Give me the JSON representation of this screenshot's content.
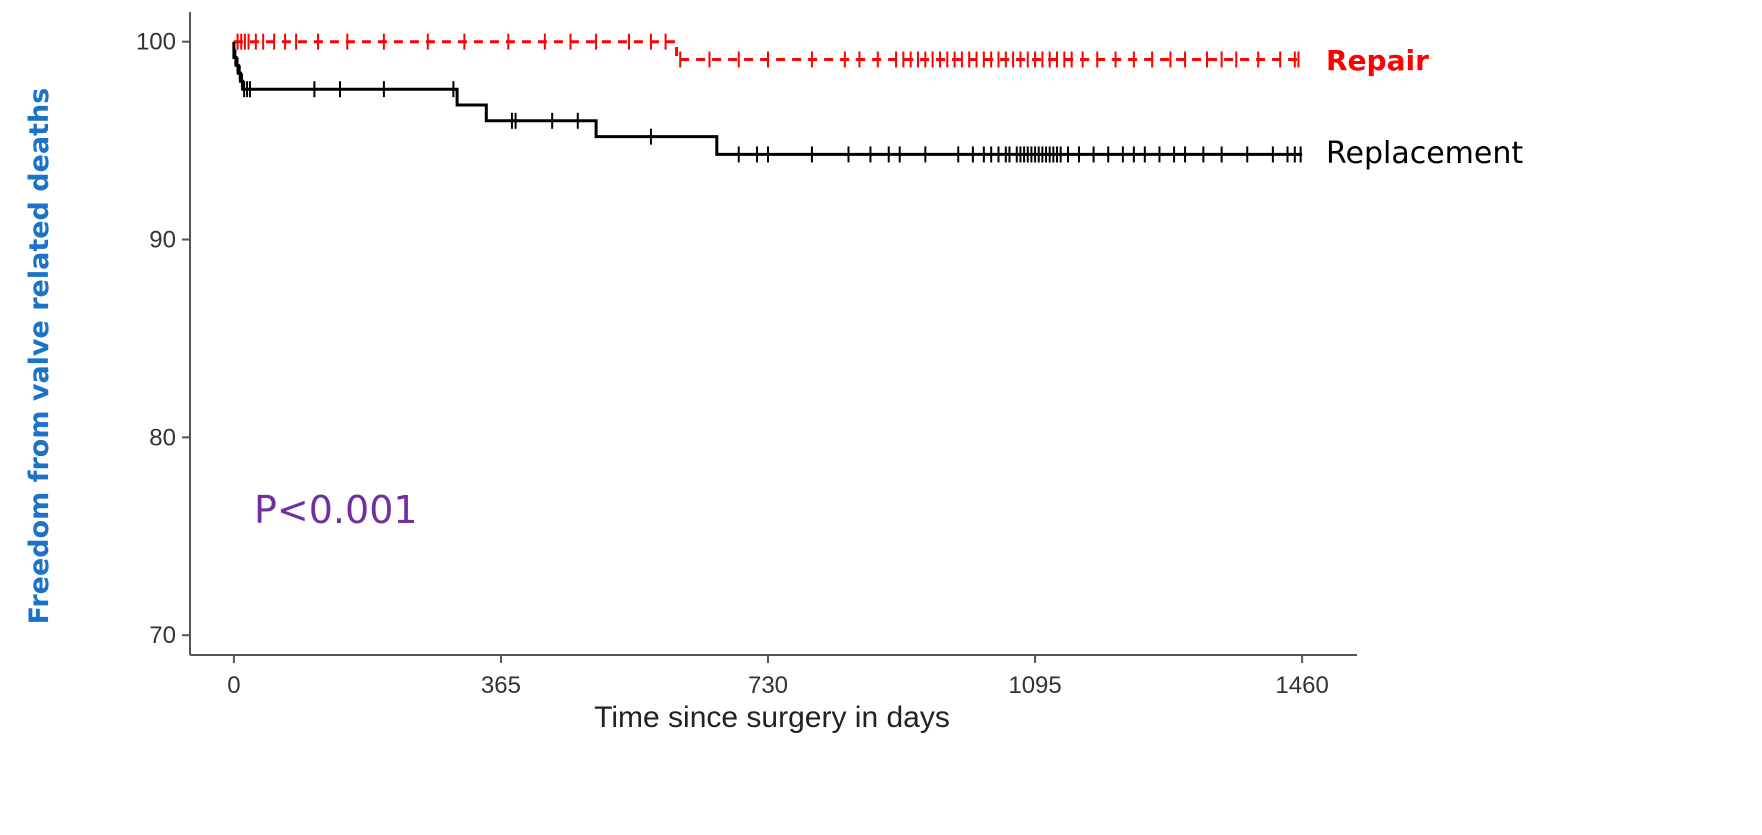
{
  "chart_data": {
    "type": "line",
    "subtype": "kaplan-meier",
    "title": "",
    "xlabel": "Time since surgery in days",
    "ylabel": "Freedom from valve related deaths",
    "xlim": [
      -60,
      1535
    ],
    "ylim": [
      69,
      101.5
    ],
    "xticks": [
      0,
      365,
      730,
      1095,
      1460
    ],
    "xtick_labels": [
      "0",
      "365",
      "730",
      "1095",
      "1460"
    ],
    "yticks": [
      70,
      80,
      90,
      100
    ],
    "ytick_labels": [
      "70",
      "80",
      "90",
      "100"
    ],
    "grid": false,
    "legend": "right-inline",
    "annotation": "P<0.001",
    "series": [
      {
        "name": "Repair",
        "color": "#ff0000",
        "line_style": "dashed",
        "label_weight": "bold",
        "steps": [
          [
            0,
            100
          ],
          [
            605,
            100
          ],
          [
            605,
            99.1
          ],
          [
            1460,
            99.1
          ]
        ],
        "censor_x": [
          5,
          10,
          15,
          20,
          30,
          40,
          55,
          70,
          85,
          115,
          155,
          205,
          265,
          315,
          375,
          425,
          460,
          495,
          540,
          570,
          590,
          610,
          650,
          690,
          730,
          790,
          835,
          855,
          880,
          905,
          915,
          925,
          935,
          945,
          955,
          965,
          975,
          985,
          995,
          1005,
          1015,
          1025,
          1035,
          1045,
          1055,
          1065,
          1075,
          1085,
          1095,
          1105,
          1115,
          1125,
          1135,
          1145,
          1160,
          1180,
          1205,
          1230,
          1255,
          1280,
          1300,
          1330,
          1350,
          1370,
          1400,
          1430,
          1450,
          1455
        ]
      },
      {
        "name": "Replacement",
        "color": "#000000",
        "line_style": "solid",
        "label_weight": "normal",
        "steps": [
          [
            0,
            100
          ],
          [
            0,
            99.2
          ],
          [
            3,
            99.2
          ],
          [
            3,
            98.8
          ],
          [
            6,
            98.8
          ],
          [
            6,
            98.4
          ],
          [
            9,
            98.4
          ],
          [
            9,
            98.0
          ],
          [
            12,
            98.0
          ],
          [
            12,
            97.6
          ],
          [
            305,
            97.6
          ],
          [
            305,
            96.8
          ],
          [
            345,
            96.8
          ],
          [
            345,
            96.0
          ],
          [
            495,
            96.0
          ],
          [
            495,
            95.2
          ],
          [
            660,
            95.2
          ],
          [
            660,
            94.3
          ],
          [
            1460,
            94.3
          ]
        ],
        "censor_x": [
          2,
          5,
          8,
          11,
          14,
          18,
          22,
          110,
          145,
          205,
          300,
          380,
          385,
          435,
          470,
          570,
          690,
          715,
          730,
          790,
          840,
          870,
          895,
          910,
          945,
          990,
          1010,
          1025,
          1035,
          1045,
          1055,
          1060,
          1070,
          1075,
          1080,
          1085,
          1090,
          1095,
          1100,
          1105,
          1110,
          1115,
          1120,
          1125,
          1130,
          1140,
          1155,
          1175,
          1195,
          1215,
          1230,
          1245,
          1265,
          1285,
          1300,
          1325,
          1350,
          1385,
          1420,
          1440,
          1450,
          1458
        ]
      }
    ]
  }
}
